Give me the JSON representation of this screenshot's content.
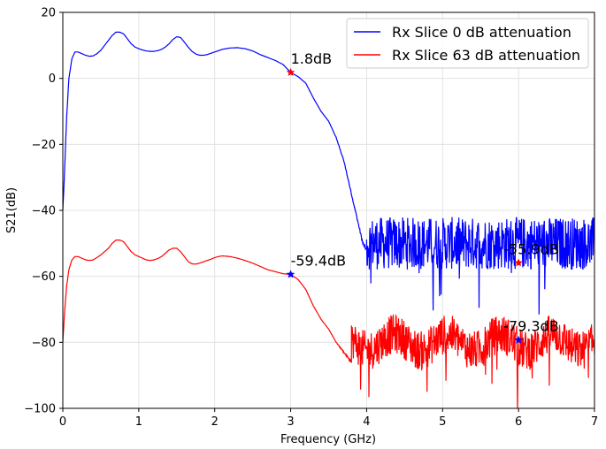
{
  "chart_data": {
    "type": "line",
    "xlabel": "Frequency (GHz)",
    "ylabel": "S21(dB)",
    "xlim": [
      0,
      7
    ],
    "ylim": [
      -100,
      20
    ],
    "xticks": [
      0,
      1,
      2,
      3,
      4,
      5,
      6,
      7
    ],
    "xtick_labels": [
      "0",
      "1",
      "2",
      "3",
      "4",
      "5",
      "6",
      "7"
    ],
    "yticks": [
      20,
      0,
      -20,
      -40,
      -60,
      -80,
      -100
    ],
    "ytick_labels": [
      "20",
      "0",
      "−20",
      "−40",
      "−60",
      "−80",
      "−100"
    ],
    "grid": true,
    "legend_position": "top-right",
    "series": [
      {
        "name": "Rx Slice 0 dB attenuation",
        "color": "#0000ff",
        "x": [
          0,
          0.02,
          0.05,
          0.08,
          0.12,
          0.16,
          0.2,
          0.25,
          0.3,
          0.35,
          0.4,
          0.45,
          0.5,
          0.55,
          0.6,
          0.65,
          0.7,
          0.75,
          0.8,
          0.85,
          0.9,
          0.95,
          1.0,
          1.05,
          1.1,
          1.15,
          1.2,
          1.25,
          1.3,
          1.35,
          1.4,
          1.45,
          1.5,
          1.55,
          1.6,
          1.65,
          1.7,
          1.75,
          1.8,
          1.85,
          1.9,
          1.95,
          2.0,
          2.05,
          2.1,
          2.2,
          2.3,
          2.4,
          2.5,
          2.6,
          2.7,
          2.8,
          2.9,
          3.0,
          3.1,
          3.2,
          3.3,
          3.4,
          3.5,
          3.6,
          3.7,
          3.8,
          3.85,
          3.9,
          3.95,
          4.0
        ],
        "values": [
          -40,
          -30,
          -12,
          0,
          6,
          8,
          8,
          7.5,
          7,
          6.7,
          6.8,
          7.5,
          8.5,
          10,
          11.5,
          13,
          14,
          14,
          13.5,
          12,
          10.5,
          9.5,
          9,
          8.6,
          8.3,
          8.2,
          8.2,
          8.4,
          8.8,
          9.5,
          10.5,
          11.8,
          12.6,
          12.4,
          11,
          9.5,
          8.2,
          7.4,
          7,
          7,
          7.2,
          7.6,
          8,
          8.4,
          8.8,
          9.2,
          9.3,
          9,
          8.3,
          7.2,
          6.3,
          5.4,
          4.2,
          1.8,
          0.5,
          -1.5,
          -6,
          -10,
          -13,
          -18,
          -25,
          -35,
          -40,
          -45,
          -50,
          -52
        ],
        "noise_region": {
          "x_start": 4.0,
          "x_end": 7.0,
          "mean": -50,
          "spread": 8
        },
        "annotation": {
          "x": 3.0,
          "y": 1.8,
          "label": "1.8dB",
          "marker_color": "#ff0000"
        },
        "annotation2": {
          "x": 6.0,
          "y": -55.9,
          "label": "-55.9dB",
          "marker_color": "#ff0000"
        }
      },
      {
        "name": "Rx Slice 63 dB attenuation",
        "color": "#ff0000",
        "x": [
          0,
          0.02,
          0.05,
          0.08,
          0.12,
          0.16,
          0.2,
          0.25,
          0.3,
          0.35,
          0.4,
          0.45,
          0.5,
          0.55,
          0.6,
          0.65,
          0.7,
          0.75,
          0.8,
          0.85,
          0.9,
          0.95,
          1.0,
          1.05,
          1.1,
          1.15,
          1.2,
          1.25,
          1.3,
          1.35,
          1.4,
          1.45,
          1.5,
          1.55,
          1.6,
          1.65,
          1.7,
          1.75,
          1.8,
          1.85,
          1.9,
          1.95,
          2.0,
          2.05,
          2.1,
          2.2,
          2.3,
          2.4,
          2.5,
          2.6,
          2.7,
          2.8,
          2.9,
          3.0,
          3.1,
          3.2,
          3.3,
          3.4,
          3.5,
          3.6,
          3.7,
          3.8
        ],
        "values": [
          -80,
          -72,
          -63,
          -58,
          -55,
          -54,
          -54,
          -54.5,
          -55,
          -55.2,
          -55,
          -54.3,
          -53.5,
          -52.5,
          -51.5,
          -50,
          -49,
          -49,
          -49.5,
          -51,
          -52.5,
          -53.5,
          -54,
          -54.5,
          -55,
          -55.2,
          -55,
          -54.6,
          -54,
          -53,
          -52,
          -51.5,
          -51.5,
          -52.5,
          -54,
          -55.5,
          -56.2,
          -56.3,
          -56,
          -55.6,
          -55.2,
          -54.8,
          -54.3,
          -54,
          -53.8,
          -54,
          -54.5,
          -55.2,
          -56,
          -57,
          -58,
          -58.6,
          -59.2,
          -59.4,
          -61,
          -64,
          -69,
          -73,
          -76,
          -80,
          -83,
          -86
        ],
        "noise_region": {
          "x_start": 3.8,
          "x_end": 7.0,
          "mean": -80,
          "spread": 6
        },
        "annotation": {
          "x": 3.0,
          "y": -59.4,
          "label": "-59.4dB",
          "marker_color": "#0000ff"
        },
        "annotation2": {
          "x": 6.0,
          "y": -79.3,
          "label": "-79.3dB",
          "marker_color": "#0000ff"
        }
      }
    ]
  }
}
